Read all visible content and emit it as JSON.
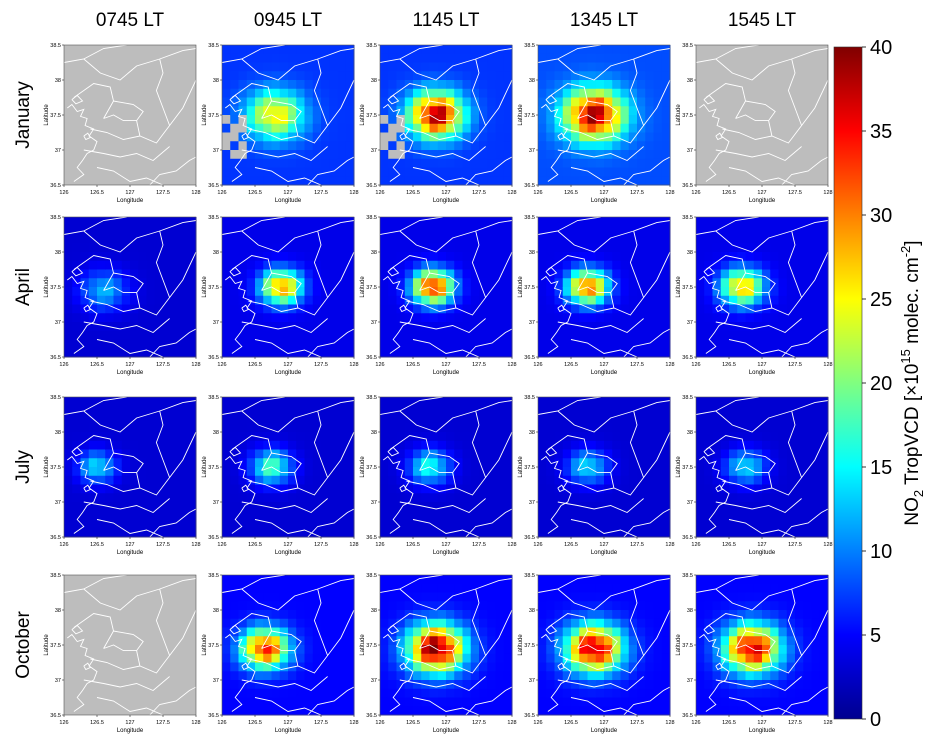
{
  "figure": {
    "column_titles": [
      "0745 LT",
      "0945 LT",
      "1145 LT",
      "1345 LT",
      "1545 LT"
    ],
    "row_titles": [
      "January",
      "April",
      "July",
      "October"
    ],
    "panel_axes": {
      "xlabel": "Longitude",
      "ylabel": "Latitude",
      "xticks": [
        "126",
        "126.5",
        "127",
        "127.5",
        "128"
      ],
      "yticks": [
        "36.5",
        "37",
        "37.5",
        "38",
        "38.5"
      ]
    },
    "colorbar": {
      "label_parts": [
        "NO",
        "2",
        " TropVCD [×10",
        "15",
        " molec. cm",
        "-2",
        "]"
      ],
      "ticks": [
        "0",
        "5",
        "10",
        "15",
        "20",
        "25",
        "30",
        "35",
        "40"
      ]
    }
  },
  "colors": {
    "no_data": "#bdbdbd",
    "boundary": "#ffffff",
    "colormap": [
      "#00008f",
      "#0000ff",
      "#0080ff",
      "#00ffff",
      "#80ff80",
      "#ffff00",
      "#ff8000",
      "#ff0000",
      "#800000"
    ]
  },
  "chart_data": {
    "type": "heatmap",
    "variable": "NO2 TropVCD",
    "units": "×10^15 molec. cm^-2",
    "x_range": [
      126,
      128
    ],
    "y_range": [
      36.5,
      38.5
    ],
    "color_range": [
      0,
      40
    ],
    "rows": [
      "January",
      "April",
      "July",
      "October"
    ],
    "columns": [
      "0745 LT",
      "0945 LT",
      "1145 LT",
      "1345 LT",
      "1545 LT"
    ],
    "panels": [
      {
        "row": "January",
        "column": "0745 LT",
        "no_data": true
      },
      {
        "row": "January",
        "column": "0945 LT",
        "no_data": false,
        "peak": 26,
        "background": 7,
        "spread": 0.42,
        "center": [
          126.8,
          37.5
        ],
        "missing_west": true
      },
      {
        "row": "January",
        "column": "1145 LT",
        "no_data": false,
        "peak": 38,
        "background": 7,
        "spread": 0.4,
        "center": [
          126.85,
          37.5
        ],
        "missing_west": true
      },
      {
        "row": "January",
        "column": "1345 LT",
        "no_data": false,
        "peak": 38,
        "background": 8,
        "spread": 0.45,
        "center": [
          126.85,
          37.5
        ],
        "missing_west": false
      },
      {
        "row": "January",
        "column": "1545 LT",
        "no_data": true
      },
      {
        "row": "April",
        "column": "0745 LT",
        "no_data": false,
        "peak": 12,
        "background": 3,
        "spread": 0.35,
        "center": [
          126.6,
          37.45
        ]
      },
      {
        "row": "April",
        "column": "0945 LT",
        "no_data": false,
        "peak": 30,
        "background": 4,
        "spread": 0.3,
        "center": [
          126.9,
          37.5
        ]
      },
      {
        "row": "April",
        "column": "1145 LT",
        "no_data": false,
        "peak": 35,
        "background": 4,
        "spread": 0.3,
        "center": [
          126.8,
          37.5
        ]
      },
      {
        "row": "April",
        "column": "1345 LT",
        "no_data": false,
        "peak": 32,
        "background": 4,
        "spread": 0.3,
        "center": [
          126.75,
          37.5
        ]
      },
      {
        "row": "April",
        "column": "1545 LT",
        "no_data": false,
        "peak": 28,
        "background": 4,
        "spread": 0.32,
        "center": [
          126.7,
          37.5
        ]
      },
      {
        "row": "July",
        "column": "0745 LT",
        "no_data": false,
        "peak": 14,
        "background": 3,
        "spread": 0.28,
        "center": [
          126.5,
          37.5
        ]
      },
      {
        "row": "July",
        "column": "0945 LT",
        "no_data": false,
        "peak": 18,
        "background": 3,
        "spread": 0.3,
        "center": [
          126.75,
          37.5
        ]
      },
      {
        "row": "July",
        "column": "1145 LT",
        "no_data": false,
        "peak": 16,
        "background": 3,
        "spread": 0.3,
        "center": [
          126.75,
          37.5
        ]
      },
      {
        "row": "July",
        "column": "1345 LT",
        "no_data": false,
        "peak": 14,
        "background": 3,
        "spread": 0.3,
        "center": [
          126.75,
          37.5
        ]
      },
      {
        "row": "July",
        "column": "1545 LT",
        "no_data": false,
        "peak": 14,
        "background": 3,
        "spread": 0.3,
        "center": [
          126.75,
          37.5
        ]
      },
      {
        "row": "October",
        "column": "0745 LT",
        "no_data": true
      },
      {
        "row": "October",
        "column": "0945 LT",
        "no_data": false,
        "peak": 34,
        "background": 5,
        "spread": 0.35,
        "center": [
          126.65,
          37.45
        ]
      },
      {
        "row": "October",
        "column": "1145 LT",
        "no_data": false,
        "peak": 40,
        "background": 5,
        "spread": 0.42,
        "center": [
          126.85,
          37.45
        ]
      },
      {
        "row": "October",
        "column": "1345 LT",
        "no_data": false,
        "peak": 38,
        "background": 5,
        "spread": 0.42,
        "center": [
          126.85,
          37.45
        ]
      },
      {
        "row": "October",
        "column": "1545 LT",
        "no_data": false,
        "peak": 37,
        "background": 5,
        "spread": 0.42,
        "center": [
          126.85,
          37.45
        ]
      }
    ]
  }
}
